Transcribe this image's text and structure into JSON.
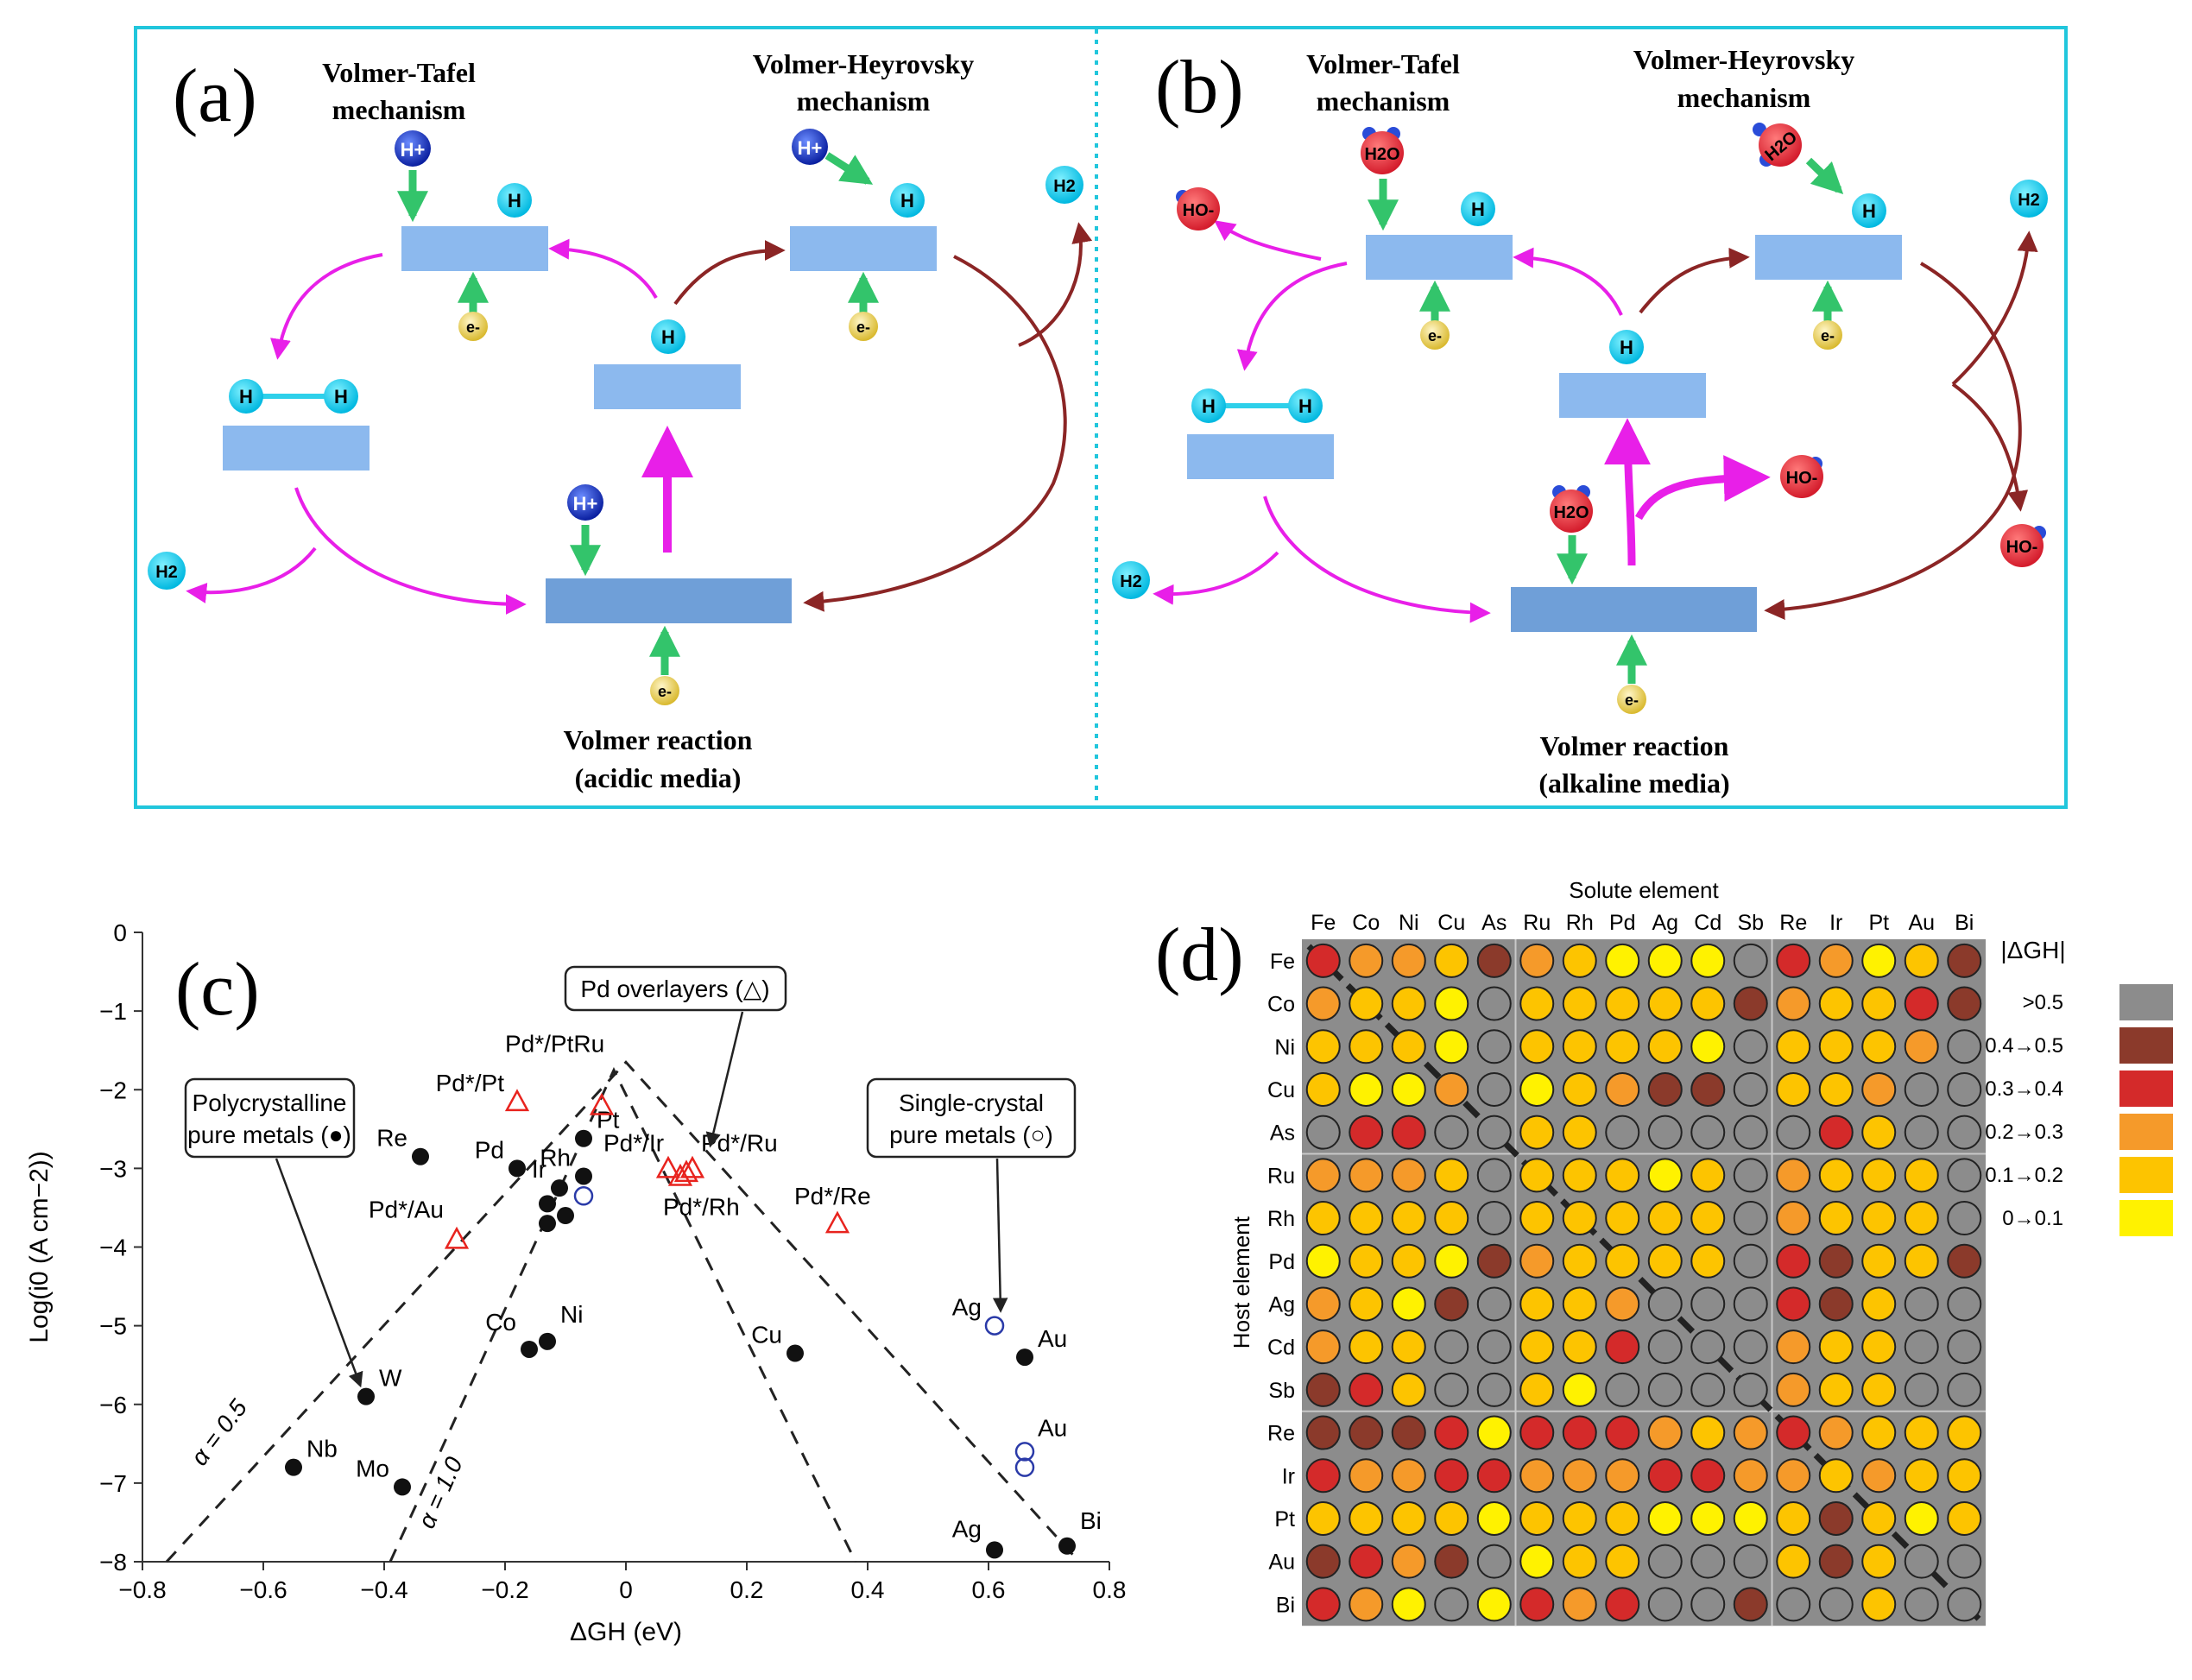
{
  "panel_a": {
    "label": "(a)",
    "tafel_title": [
      "Volmer-Tafel",
      "mechanism"
    ],
    "heyrovsky_title": [
      "Volmer-Heyrovsky",
      "mechanism"
    ],
    "volmer_title": [
      "Volmer reaction",
      "(acidic media)"
    ],
    "species": {
      "h": "H",
      "h_plus": "H+",
      "h2": "H2",
      "electron": "e-"
    }
  },
  "panel_b": {
    "label": "(b)",
    "tafel_title": [
      "Volmer-Tafel",
      "mechanism"
    ],
    "heyrovsky_title": [
      "Volmer-Heyrovsky",
      "mechanism"
    ],
    "volmer_title": [
      "Volmer reaction",
      "(alkaline media)"
    ],
    "species": {
      "h": "H",
      "water": "H2O",
      "hydroxide": "HO-",
      "h2": "H2",
      "electron": "e-"
    }
  },
  "chart_data": [
    {
      "panel": "(c)",
      "type": "scatter",
      "xlabel": "ΔGH (eV)",
      "ylabel": "Log(i0 (A cm−2))",
      "xlim": [
        -0.8,
        0.8
      ],
      "ylim": [
        -8,
        0
      ],
      "xticks": [
        "−0.8",
        "−0.6",
        "−0.4",
        "−0.2",
        "0",
        "0.2",
        "0.4",
        "0.6",
        "0.8"
      ],
      "yticks": [
        "0",
        "−1",
        "−2",
        "−3",
        "−4",
        "−5",
        "−6",
        "−7",
        "−8"
      ],
      "series": [
        {
          "name": "Polycrystalline pure metals",
          "marker": "filled-circle",
          "points": [
            {
              "label": "Re",
              "x": -0.34,
              "y": -2.85
            },
            {
              "label": "Pd",
              "x": -0.18,
              "y": -3.0
            },
            {
              "label": "Pt",
              "x": -0.07,
              "y": -2.62
            },
            {
              "label": "Rh",
              "x": -0.07,
              "y": -3.1
            },
            {
              "label": "Ir",
              "x": -0.11,
              "y": -3.25
            },
            {
              "label": "",
              "x": -0.13,
              "y": -3.45
            },
            {
              "label": "",
              "x": -0.1,
              "y": -3.6
            },
            {
              "label": "",
              "x": -0.13,
              "y": -3.7
            },
            {
              "label": "Co",
              "x": -0.16,
              "y": -5.3
            },
            {
              "label": "Ni",
              "x": -0.13,
              "y": -5.2
            },
            {
              "label": "W",
              "x": -0.43,
              "y": -5.9
            },
            {
              "label": "Nb",
              "x": -0.55,
              "y": -6.8
            },
            {
              "label": "Mo",
              "x": -0.37,
              "y": -7.05
            },
            {
              "label": "Cu",
              "x": 0.28,
              "y": -5.35
            },
            {
              "label": "Au",
              "x": 0.66,
              "y": -5.4
            },
            {
              "label": "Ag",
              "x": 0.61,
              "y": -7.85
            },
            {
              "label": "Bi",
              "x": 0.73,
              "y": -7.8
            }
          ]
        },
        {
          "name": "Single-crystal pure metals",
          "marker": "open-circle",
          "points": [
            {
              "label": "",
              "x": -0.07,
              "y": -3.35
            },
            {
              "label": "Ag",
              "x": 0.61,
              "y": -5.0
            },
            {
              "label": "Au",
              "x": 0.66,
              "y": -6.6
            },
            {
              "label": "",
              "x": 0.66,
              "y": -6.8
            }
          ]
        },
        {
          "name": "Pd overlayers",
          "marker": "open-triangle",
          "points": [
            {
              "label": "Pd*/Pt",
              "x": -0.18,
              "y": -2.15
            },
            {
              "label": "",
              "x": -0.04,
              "y": -2.2
            },
            {
              "label": "Pd*/Au",
              "x": -0.28,
              "y": -3.9
            },
            {
              "label": "Pd*/Ir",
              "x": 0.07,
              "y": -3.0
            },
            {
              "label": "Pd*/Ru",
              "x": 0.11,
              "y": -3.0
            },
            {
              "label": "Pd*/Rh",
              "x": 0.09,
              "y": -3.1
            },
            {
              "label": "",
              "x": 0.1,
              "y": -3.05
            },
            {
              "label": "Pd*/Re",
              "x": 0.35,
              "y": -3.7
            }
          ]
        }
      ],
      "annotations": {
        "pdptru": "Pd*/PtRu",
        "alpha_05": "α = 0.5",
        "alpha_10": "α = 1.0",
        "box_poly_lines": [
          "Polycrystalline",
          "pure metals (●)"
        ],
        "box_pd": "Pd overlayers (△)",
        "box_single_lines": [
          "Single-crystal",
          "pure metals (○)"
        ]
      }
    },
    {
      "panel": "(d)",
      "type": "heatmap",
      "title": "Solute element",
      "ylabel": "Host element",
      "columns": [
        "Fe",
        "Co",
        "Ni",
        "Cu",
        "As",
        "Ru",
        "Rh",
        "Pd",
        "Ag",
        "Cd",
        "Sb",
        "Re",
        "Ir",
        "Pt",
        "Au",
        "Bi"
      ],
      "rows": [
        "Fe",
        "Co",
        "Ni",
        "Cu",
        "As",
        "Ru",
        "Rh",
        "Pd",
        "Ag",
        "Cd",
        "Sb",
        "Re",
        "Ir",
        "Pt",
        "Au",
        "Bi"
      ],
      "legend_title": "|ΔGH|",
      "legend": [
        {
          "code": 0,
          "label": ">0.5",
          "color": "#8c8c8c"
        },
        {
          "code": 1,
          "label": "0.4→0.5",
          "color": "#8b3a2b"
        },
        {
          "code": 2,
          "label": "0.3→0.4",
          "color": "#d42a2a"
        },
        {
          "code": 3,
          "label": "0.2→0.3",
          "color": "#f59a2a"
        },
        {
          "code": 4,
          "label": "0.1→0.2",
          "color": "#fdc400"
        },
        {
          "code": 5,
          "label": "0→0.1",
          "color": "#fff200"
        }
      ],
      "values": [
        [
          2,
          3,
          3,
          4,
          1,
          3,
          4,
          5,
          5,
          5,
          0,
          2,
          3,
          5,
          4,
          1
        ],
        [
          3,
          4,
          4,
          5,
          0,
          4,
          4,
          4,
          4,
          4,
          1,
          3,
          4,
          4,
          2,
          1
        ],
        [
          4,
          4,
          4,
          5,
          0,
          4,
          4,
          4,
          4,
          5,
          0,
          4,
          4,
          4,
          3,
          0
        ],
        [
          4,
          5,
          5,
          3,
          0,
          5,
          4,
          3,
          1,
          1,
          0,
          4,
          4,
          3,
          0,
          0
        ],
        [
          0,
          2,
          2,
          0,
          0,
          4,
          4,
          0,
          0,
          0,
          0,
          0,
          2,
          4,
          0,
          0
        ],
        [
          3,
          3,
          3,
          4,
          0,
          4,
          4,
          4,
          5,
          4,
          0,
          3,
          4,
          4,
          4,
          0
        ],
        [
          4,
          4,
          4,
          4,
          0,
          4,
          4,
          4,
          4,
          4,
          0,
          3,
          4,
          4,
          4,
          0
        ],
        [
          5,
          4,
          4,
          5,
          1,
          3,
          4,
          4,
          4,
          4,
          0,
          2,
          1,
          4,
          4,
          1
        ],
        [
          3,
          4,
          5,
          1,
          0,
          4,
          4,
          3,
          0,
          0,
          0,
          2,
          1,
          4,
          0,
          0
        ],
        [
          3,
          4,
          4,
          0,
          0,
          4,
          4,
          2,
          0,
          0,
          0,
          3,
          4,
          4,
          0,
          0
        ],
        [
          1,
          2,
          4,
          0,
          0,
          4,
          5,
          0,
          0,
          0,
          0,
          3,
          4,
          4,
          0,
          0
        ],
        [
          1,
          1,
          1,
          2,
          5,
          2,
          2,
          2,
          3,
          4,
          3,
          2,
          3,
          4,
          4,
          4
        ],
        [
          2,
          3,
          3,
          2,
          2,
          3,
          3,
          3,
          2,
          2,
          3,
          3,
          4,
          3,
          4,
          4
        ],
        [
          4,
          4,
          4,
          4,
          5,
          4,
          4,
          4,
          5,
          5,
          5,
          4,
          1,
          4,
          5,
          4
        ],
        [
          1,
          2,
          3,
          1,
          0,
          5,
          4,
          4,
          0,
          0,
          0,
          4,
          1,
          4,
          0,
          0
        ],
        [
          2,
          3,
          5,
          0,
          5,
          2,
          3,
          2,
          0,
          0,
          1,
          0,
          0,
          4,
          0,
          0
        ]
      ]
    }
  ],
  "panel_c": {
    "label": "(c)"
  },
  "panel_d": {
    "label": "(d)"
  }
}
